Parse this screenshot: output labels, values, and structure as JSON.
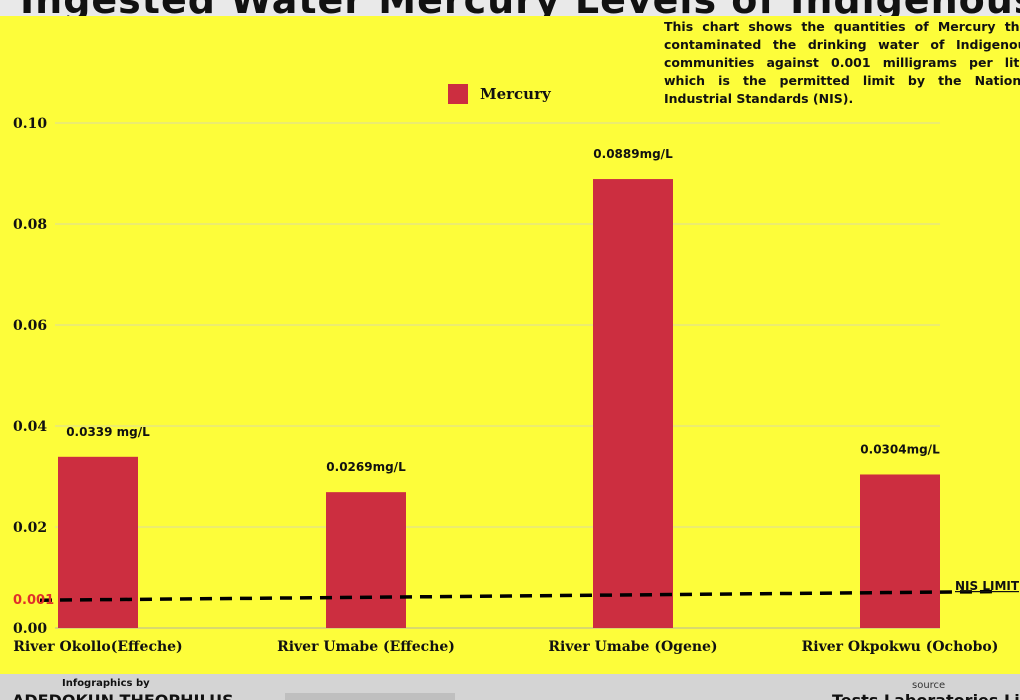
{
  "header": {
    "title": "Ingested Water Mercury Levels of Indigenous Communities in Delta"
  },
  "description": "This chart shows the quantities of Mercury that contaminated the drinking water of Indigenous communities against 0.001 milligrams per litre which is the permitted limit by the National Industrial Standards (NIS).",
  "legend": {
    "label": "Mercury",
    "color": "#cc2e40"
  },
  "chart_data": {
    "type": "bar",
    "categories": [
      "River Okollo(Effeche)",
      "River Umabe (Effeche)",
      "River Umabe (Ogene)",
      "River Okpokwu (Ochobo)"
    ],
    "series": [
      {
        "name": "Mercury",
        "values": [
          0.0339,
          0.0269,
          0.0889,
          0.0304
        ],
        "color": "#cc2e40"
      }
    ],
    "data_labels": [
      "0.0339 mg/L",
      "0.0269mg/L",
      "0.0889mg/L",
      "0.0304mg/L"
    ],
    "y_ticks": [
      "0.00",
      "0.02",
      "0.04",
      "0.06",
      "0.08",
      "0.10"
    ],
    "y_tick_values": [
      0,
      0.02,
      0.04,
      0.06,
      0.08,
      0.1
    ],
    "ylim": [
      0,
      0.1
    ],
    "grid": true,
    "reference_line": {
      "label": "NIS LIMIT",
      "tick_label": "0.001",
      "start_value": 0.0055,
      "end_value": 0.0072,
      "style": "dashed",
      "tick_color": "#e0302a"
    }
  },
  "footer": {
    "credit_label": "Infographics by",
    "author": "ADEDOKUN THEOPHILUS",
    "middle_text": "...",
    "source_label": "source",
    "source": "Tests Laboratories Limit..."
  }
}
